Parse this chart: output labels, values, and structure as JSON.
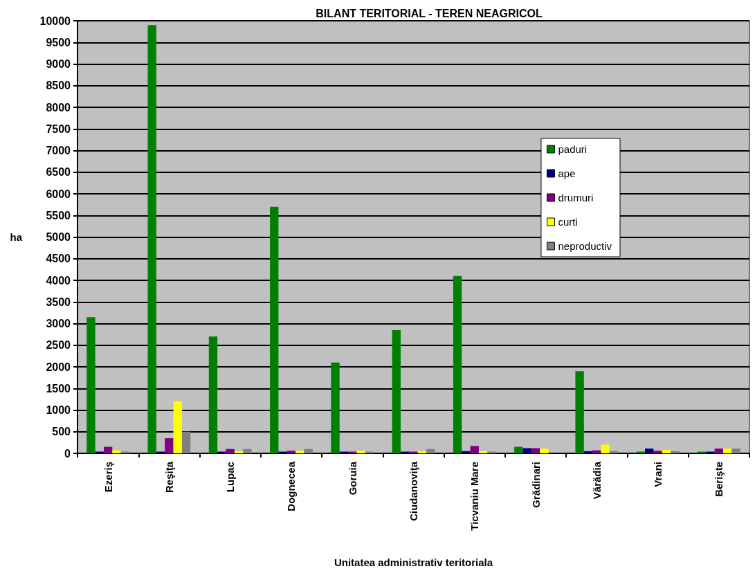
{
  "chart_data": {
    "type": "bar",
    "title": "BILANT TERITORIAL - TEREN NEAGRICOL",
    "xlabel": "Unitatea administrativ teritoriala",
    "ylabel": "ha",
    "categories": [
      "Ezeriş",
      "Reşiţa",
      "Lupac",
      "Dognecea",
      "Goruia",
      "Ciudanoviţa",
      "Ticvaniu Mare",
      "Grădinari",
      "Vărădia",
      "Vrani",
      "Berişte"
    ],
    "series": [
      {
        "name": "paduri",
        "color": "#008000",
        "values": [
          3150,
          9900,
          2700,
          5700,
          2100,
          2850,
          4100,
          150,
          1900,
          40,
          40
        ]
      },
      {
        "name": "ape",
        "color": "#000080",
        "values": [
          40,
          40,
          40,
          40,
          40,
          40,
          50,
          120,
          50,
          110,
          40
        ]
      },
      {
        "name": "drumuri",
        "color": "#800080",
        "values": [
          150,
          350,
          100,
          60,
          40,
          40,
          170,
          120,
          70,
          60,
          110
        ]
      },
      {
        "name": "curti",
        "color": "#ffff00",
        "values": [
          70,
          1200,
          50,
          60,
          60,
          50,
          50,
          110,
          200,
          80,
          110
        ]
      },
      {
        "name": "neproductiv",
        "color": "#808080",
        "values": [
          40,
          500,
          100,
          100,
          40,
          100,
          40,
          0,
          50,
          50,
          110
        ]
      }
    ],
    "ylim": [
      0,
      10000
    ],
    "yticks": [
      0,
      500,
      1000,
      1500,
      2000,
      2500,
      3000,
      3500,
      4000,
      4500,
      5000,
      5500,
      6000,
      6500,
      7000,
      7500,
      8000,
      8500,
      9000,
      9500,
      10000
    ],
    "grid": "y",
    "legend": "right"
  }
}
